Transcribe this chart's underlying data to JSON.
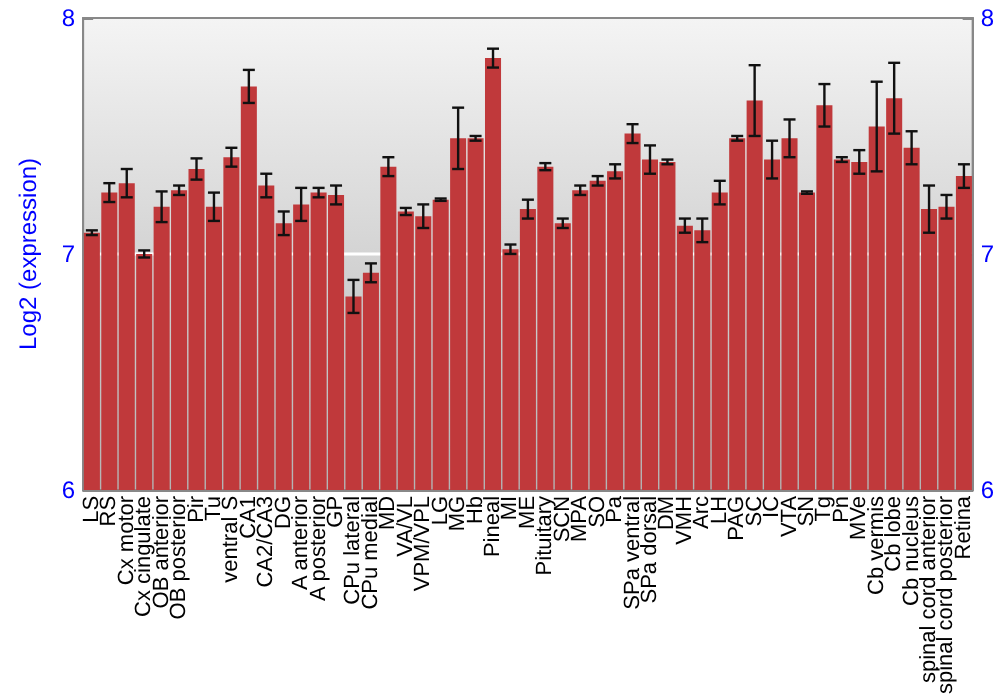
{
  "chart_data": {
    "type": "bar",
    "ylabel": "Log2 (expression)",
    "categories": [
      "LS",
      "RS",
      "Cx motor",
      "Cx cingulate",
      "OB anterior",
      "OB posterior",
      "Pir",
      "Tu",
      "ventral S",
      "CA1",
      "CA2/CA3",
      "DG",
      "A anterior",
      "A posterior",
      "GP",
      "CPu lateral",
      "CPu medial",
      "MD",
      "VA/VL",
      "VPM/VPL",
      "LG",
      "MG",
      "Hb",
      "Pineal",
      "MI",
      "ME",
      "Pituitary",
      "SCN",
      "MPA",
      "SO",
      "Pa",
      "SPa ventral",
      "SPa dorsal",
      "DM",
      "VMH",
      "Arc",
      "LH",
      "PAG",
      "SC",
      "IC",
      "VTA",
      "SN",
      "Tg",
      "Pn",
      "MVe",
      "Cb vermis",
      "Cb lobe",
      "Cb nucleus",
      "spinal cord anterior",
      "spinal cord posterior",
      "Retina"
    ],
    "values": [
      7.09,
      7.26,
      7.3,
      7.0,
      7.2,
      7.27,
      7.36,
      7.2,
      7.41,
      7.71,
      7.29,
      7.13,
      7.21,
      7.26,
      7.25,
      6.82,
      6.92,
      7.37,
      7.18,
      7.16,
      7.23,
      7.49,
      7.49,
      7.83,
      7.02,
      7.19,
      7.37,
      7.13,
      7.27,
      7.31,
      7.35,
      7.51,
      7.4,
      7.39,
      7.12,
      7.1,
      7.26,
      7.49,
      7.65,
      7.4,
      7.49,
      7.26,
      7.63,
      7.4,
      7.39,
      7.54,
      7.66,
      7.45,
      7.19,
      7.2,
      7.33
    ],
    "errors": [
      0.01,
      0.04,
      0.06,
      0.015,
      0.065,
      0.02,
      0.045,
      0.06,
      0.04,
      0.07,
      0.05,
      0.05,
      0.07,
      0.02,
      0.04,
      0.07,
      0.04,
      0.04,
      0.015,
      0.05,
      0.005,
      0.13,
      0.01,
      0.04,
      0.02,
      0.04,
      0.015,
      0.02,
      0.02,
      0.02,
      0.03,
      0.04,
      0.06,
      0.01,
      0.03,
      0.05,
      0.05,
      0.01,
      0.15,
      0.08,
      0.08,
      0.005,
      0.09,
      0.01,
      0.05,
      0.19,
      0.15,
      0.07,
      0.1,
      0.05,
      0.05
    ],
    "color": "#c0393b",
    "ylim": [
      6,
      8
    ],
    "yticks": [
      6,
      7,
      8
    ],
    "y2lim": [
      6,
      8
    ],
    "y2ticks": [
      6,
      7,
      8
    ],
    "grid": "y"
  }
}
